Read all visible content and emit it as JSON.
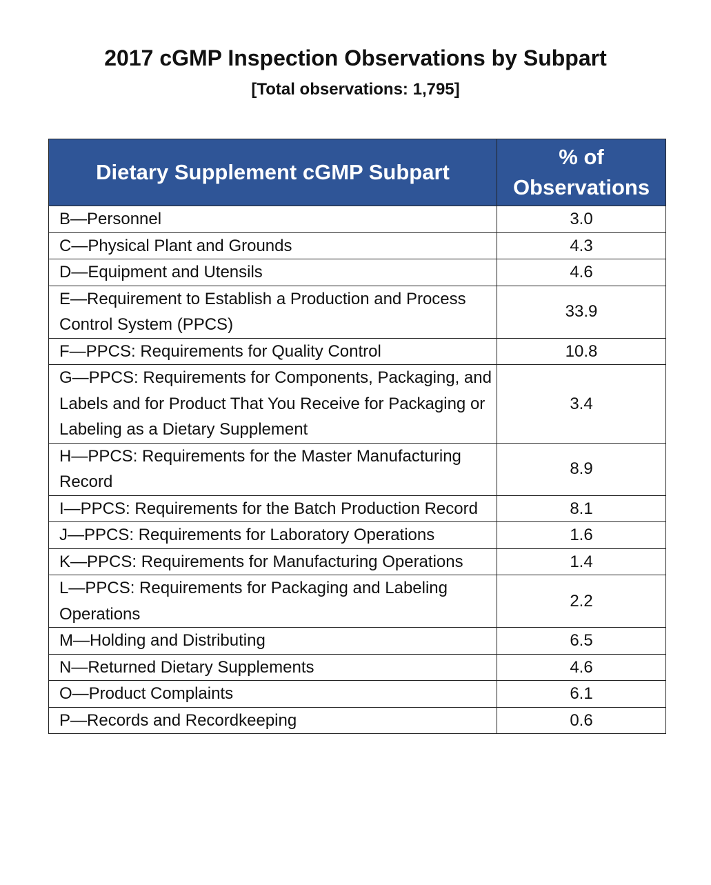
{
  "title": "2017 cGMP Inspection Observations by Subpart",
  "subtitle": "[Total observations: 1,795]",
  "header_color": "#2F5597",
  "chart_data": {
    "type": "table",
    "columns": [
      "Dietary Supplement cGMP Subpart",
      "% of Observations"
    ],
    "rows": [
      {
        "subpart": "B—Personnel",
        "percent": "3.0"
      },
      {
        "subpart": "C—Physical Plant and Grounds",
        "percent": "4.3"
      },
      {
        "subpart": "D—Equipment and Utensils",
        "percent": "4.6"
      },
      {
        "subpart": "E—Requirement to Establish a Production and Process Control System (PPCS)",
        "percent": "33.9"
      },
      {
        "subpart": "F—PPCS: Requirements for Quality Control",
        "percent": "10.8"
      },
      {
        "subpart": "G—PPCS: Requirements for Components, Packaging, and Labels and for Product That You Receive for Packaging or Labeling as a Dietary Supplement",
        "percent": "3.4"
      },
      {
        "subpart": "H—PPCS: Requirements for the Master Manufacturing Record",
        "percent": "8.9"
      },
      {
        "subpart": "I—PPCS: Requirements for the Batch Production Record",
        "percent": "8.1"
      },
      {
        "subpart": "J—PPCS: Requirements for Laboratory Operations",
        "percent": "1.6"
      },
      {
        "subpart": "K—PPCS: Requirements for Manufacturing Operations",
        "percent": "1.4"
      },
      {
        "subpart": "L—PPCS: Requirements for Packaging and Labeling Operations",
        "percent": "2.2"
      },
      {
        "subpart": "M—Holding and Distributing",
        "percent": "6.5"
      },
      {
        "subpart": "N—Returned Dietary Supplements",
        "percent": "4.6"
      },
      {
        "subpart": "O—Product Complaints",
        "percent": "6.1"
      },
      {
        "subpart": "P—Records and Recordkeeping",
        "percent": "0.6"
      }
    ]
  }
}
